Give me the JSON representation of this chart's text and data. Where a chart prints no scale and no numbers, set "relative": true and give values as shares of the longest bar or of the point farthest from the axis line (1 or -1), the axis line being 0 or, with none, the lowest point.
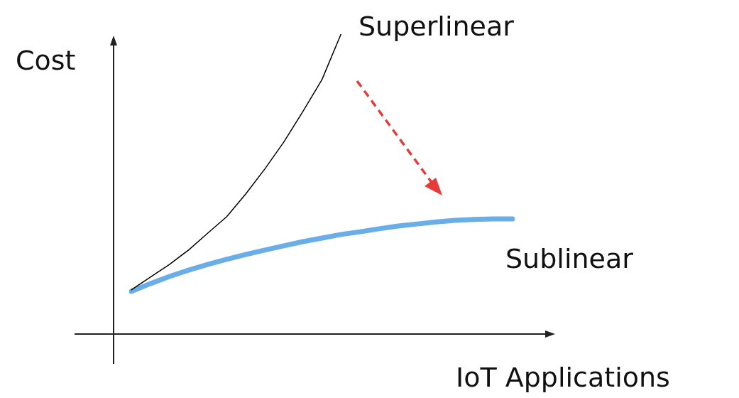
{
  "chart_data": {
    "type": "line",
    "relative": true,
    "xlabel": "IoT Applications",
    "ylabel": "Cost",
    "marker": "none",
    "categories": [
      null,
      null,
      null,
      null,
      null,
      null,
      null,
      null,
      null,
      null,
      null,
      null,
      null,
      null,
      null,
      null,
      null,
      null,
      null,
      null,
      null
    ],
    "series": [
      {
        "name": "Superlinear",
        "color": "#000000",
        "values": [
          0.147,
          0.19,
          0.232,
          0.28,
          0.336,
          0.391,
          0.467,
          0.55,
          0.64,
          0.742,
          0.848,
          1,
          null,
          null,
          null,
          null,
          null,
          null,
          null,
          null,
          null
        ]
      },
      {
        "name": "Sublinear",
        "color": "#6aaee8",
        "values": [
          0.142,
          0.168,
          0.192,
          0.213,
          0.232,
          0.249,
          0.265,
          0.28,
          0.294,
          0.308,
          0.32,
          0.332,
          0.341,
          0.351,
          0.36,
          0.367,
          0.374,
          0.379,
          0.382,
          0.384,
          0.384
        ]
      }
    ]
  }
}
